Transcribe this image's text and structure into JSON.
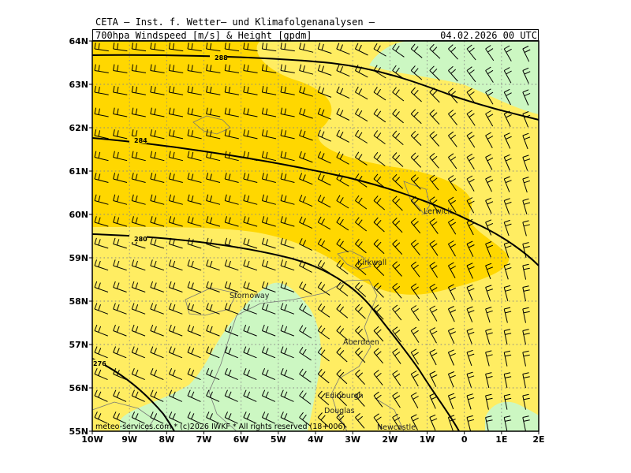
{
  "header": {
    "title_line1": "CETA – Inst. f. Wetter– und Klimafolgenanalysen –",
    "title_line2": "700hpa Windspeed [m/s] & Height [gpdm]",
    "datetime": "04.02.2026 00 UTC"
  },
  "axes": {
    "lat_labels": [
      "64N",
      "63N",
      "62N",
      "61N",
      "60N",
      "59N",
      "58N",
      "57N",
      "56N",
      "55N"
    ],
    "lon_labels": [
      "10W",
      "9W",
      "8W",
      "7W",
      "6W",
      "5W",
      "4W",
      "3W",
      "2W",
      "1W",
      "0",
      "1E",
      "2E"
    ]
  },
  "contours": {
    "labels": [
      "288",
      "284",
      "280",
      "276"
    ]
  },
  "cities": [
    {
      "name": "Lerwick"
    },
    {
      "name": "Kirkwall"
    },
    {
      "name": "Stornoway"
    },
    {
      "name": "Aberdeen"
    },
    {
      "name": "Edinburgh"
    },
    {
      "name": "Douglas"
    },
    {
      "name": "Newcastle"
    }
  ],
  "footer": {
    "copyright": "meteo-services.com * (c)2026 IWKF * All rights reserved (18+006)"
  },
  "colors": {
    "band_green": "#ccf7c2",
    "band_light_yellow": "#ffed62",
    "band_gold": "#ffd700",
    "contour": "#000000",
    "coast": "#777777",
    "grid": "#888888"
  }
}
